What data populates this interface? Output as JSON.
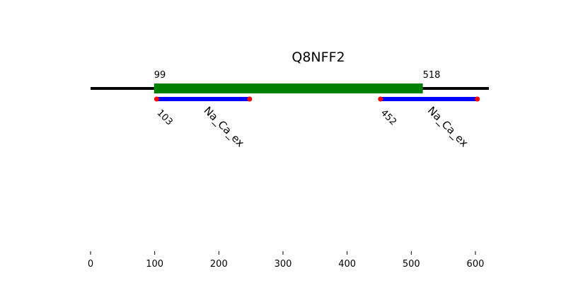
{
  "title": "Q8NFF2",
  "protein_length": 621,
  "xaxis": {
    "range": [
      0,
      621
    ],
    "ticks": [
      0,
      100,
      200,
      300,
      400,
      500,
      600
    ],
    "tick_labels": [
      "0",
      "100",
      "200",
      "300",
      "400",
      "500",
      "600"
    ]
  },
  "region": {
    "start": 99,
    "end": 518,
    "start_label": "99",
    "end_label": "518",
    "color": "#008000"
  },
  "domains": [
    {
      "name": "Na_Ca_ex",
      "start": 103,
      "end": 248,
      "start_label": "103"
    },
    {
      "name": "Na_Ca_ex",
      "start": 452,
      "end": 603,
      "start_label": "452"
    }
  ],
  "colors": {
    "backbone": "#000000",
    "domain": "#0000ff",
    "endpoint": "#ff0000"
  }
}
